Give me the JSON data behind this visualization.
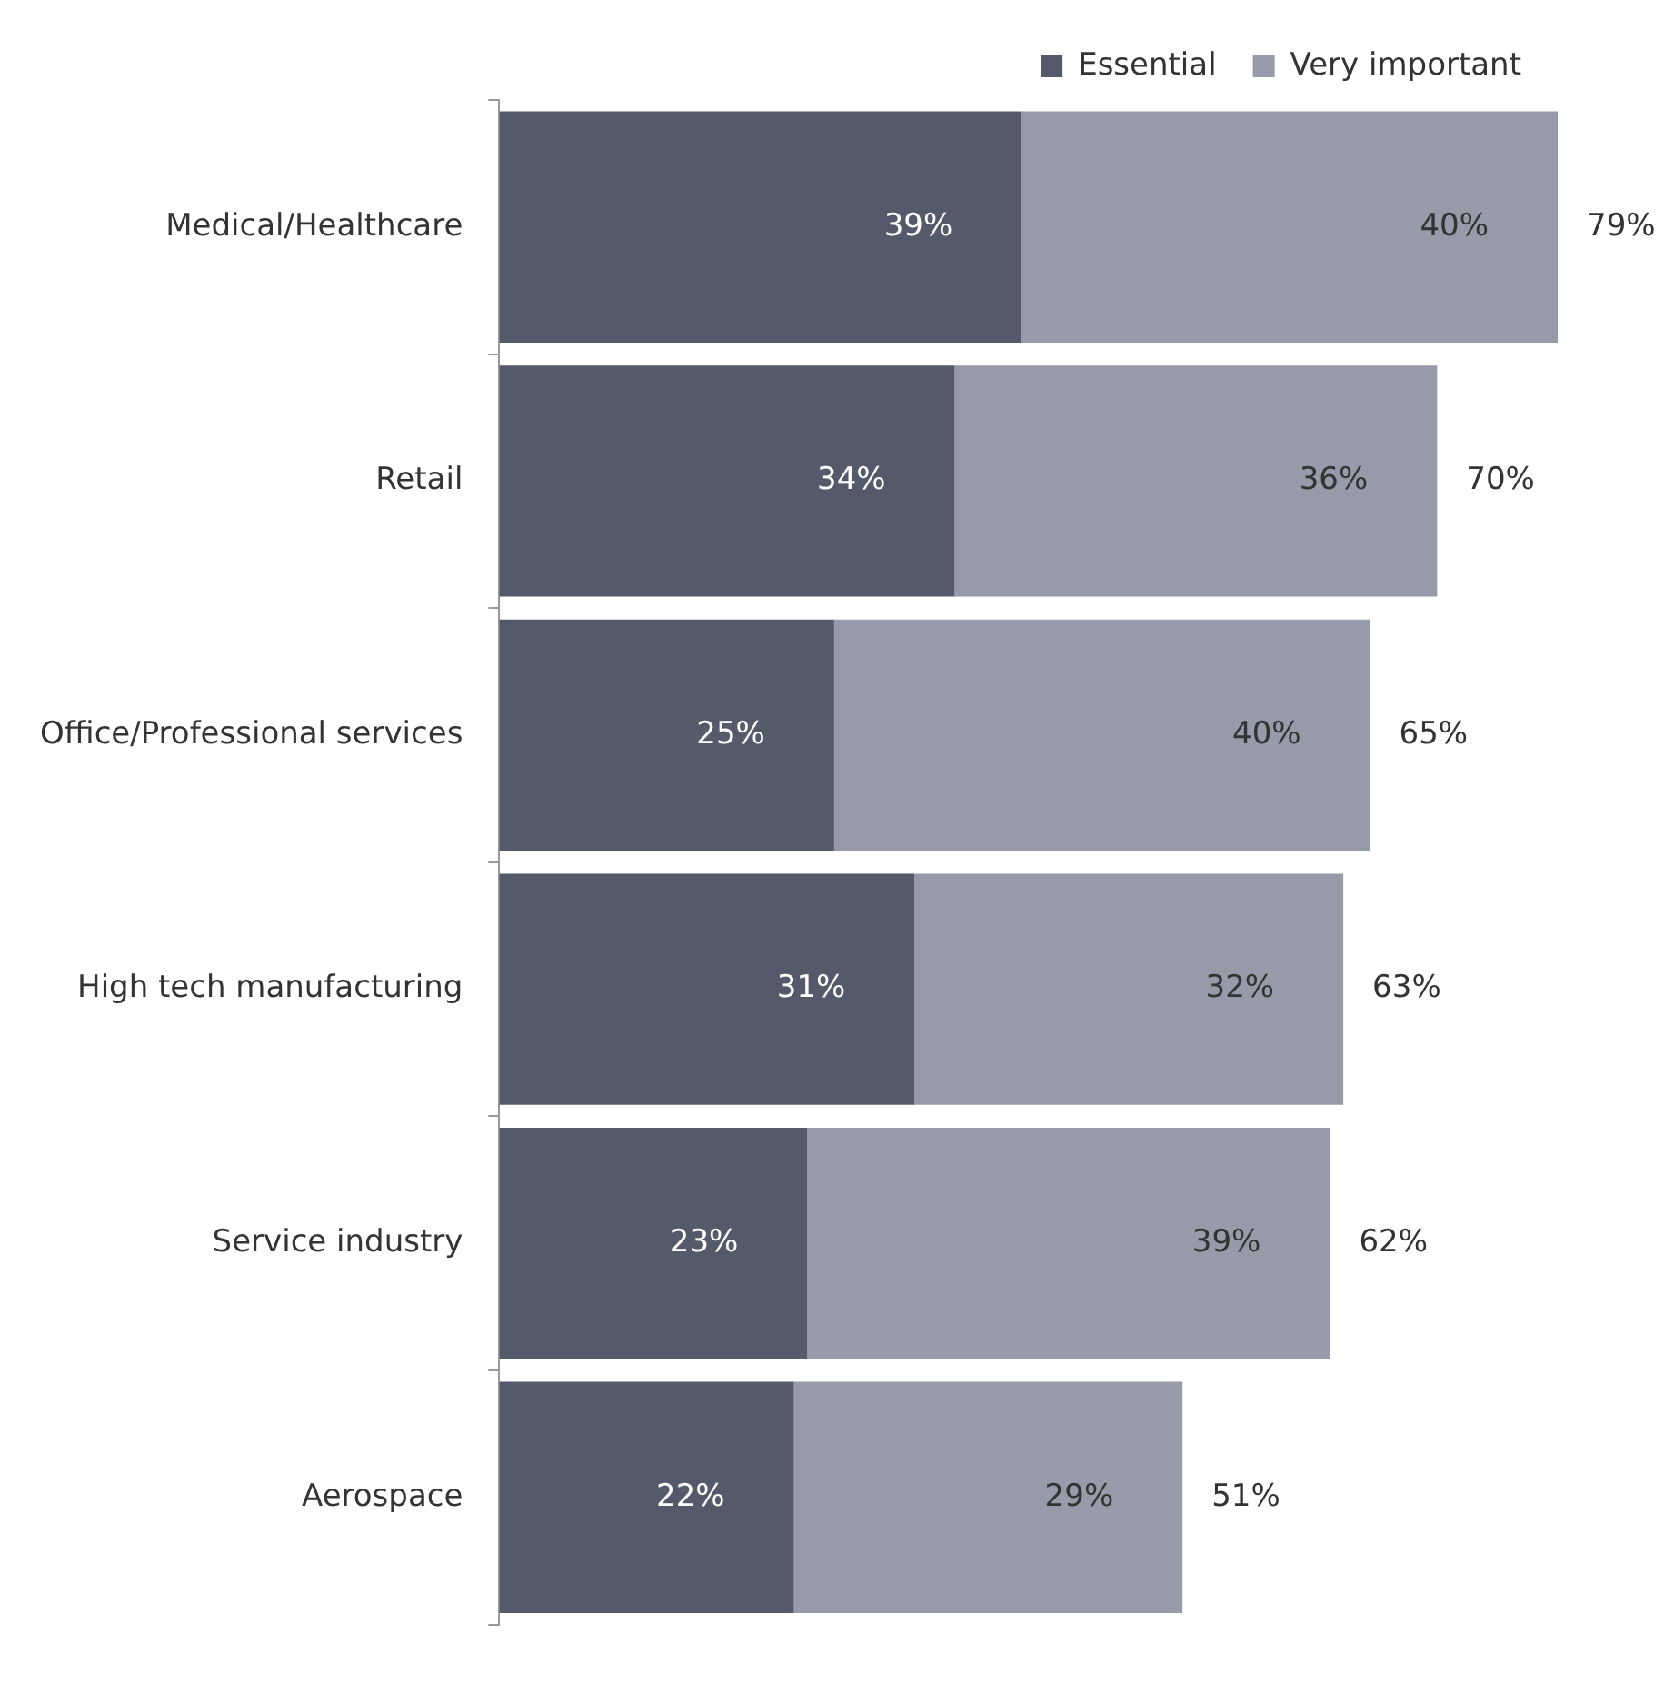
{
  "chart_data": {
    "type": "bar",
    "orientation": "horizontal",
    "stacked": true,
    "legend": "top right",
    "categories": [
      "Medical/Healthcare",
      "Retail",
      "Office/Professional services",
      "High tech manufacturing",
      "Service industry",
      "Aerospace"
    ],
    "series": [
      {
        "name": "Essential",
        "color": "#555a6a",
        "values": [
          39,
          34,
          25,
          31,
          23,
          22
        ],
        "value_labels": [
          "39%",
          "34%",
          "25%",
          "31%",
          "23%",
          "22%"
        ]
      },
      {
        "name": "Very important",
        "color": "#979aa8",
        "values": [
          40,
          36,
          40,
          32,
          39,
          29
        ],
        "value_labels": [
          "40%",
          "36%",
          "40%",
          "32%",
          "39%",
          "29%"
        ]
      }
    ],
    "totals": [
      "79%",
      "70%",
      "65%",
      "63%",
      "62%",
      "51%"
    ]
  }
}
